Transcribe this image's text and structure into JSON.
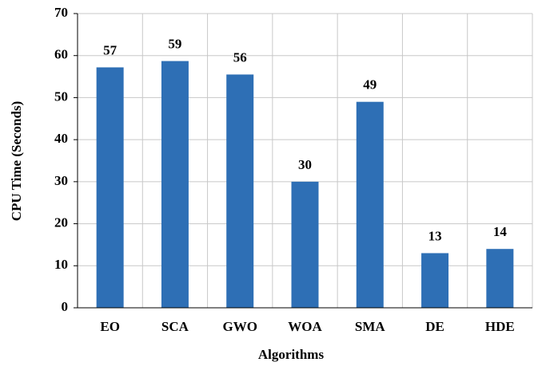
{
  "chart_data": {
    "type": "bar",
    "x_label": "Algorithms",
    "y_label": "CPU Time (Seconds)",
    "categories": [
      "EO",
      "SCA",
      "GWO",
      "WOA",
      "SMA",
      "DE",
      "HDE"
    ],
    "values": [
      57.2,
      58.7,
      55.5,
      30,
      49,
      13,
      14
    ],
    "value_labels": [
      "57",
      "59",
      "56",
      "30",
      "49",
      "13",
      "14"
    ],
    "color": "#2e6fb5",
    "ylim": [
      0,
      70
    ],
    "yticks": [
      0,
      10,
      20,
      30,
      40,
      50,
      60,
      70
    ],
    "grid": true
  }
}
